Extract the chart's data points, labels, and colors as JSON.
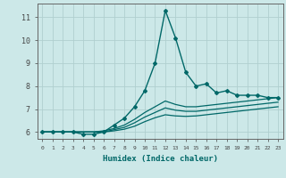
{
  "xlabel": "Humidex (Indice chaleur)",
  "ylabel": "",
  "xlim": [
    -0.5,
    23.5
  ],
  "ylim": [
    5.7,
    11.6
  ],
  "yticks": [
    6,
    7,
    8,
    9,
    10,
    11
  ],
  "xticks": [
    0,
    1,
    2,
    3,
    4,
    5,
    6,
    7,
    8,
    9,
    10,
    11,
    12,
    13,
    14,
    15,
    16,
    17,
    18,
    19,
    20,
    21,
    22,
    23
  ],
  "bg_color": "#cce8e8",
  "grid_color": "#b0cfcf",
  "line_color": "#006868",
  "lines": [
    {
      "x": [
        0,
        1,
        2,
        3,
        4,
        5,
        6,
        7,
        8,
        9,
        10,
        11,
        12,
        13,
        14,
        15,
        16,
        17,
        18,
        19,
        20,
        21,
        22,
        23
      ],
      "y": [
        6.0,
        6.0,
        6.0,
        6.0,
        5.9,
        5.9,
        6.0,
        6.3,
        6.6,
        7.1,
        7.8,
        9.0,
        11.3,
        10.1,
        8.6,
        8.0,
        8.1,
        7.7,
        7.8,
        7.6,
        7.6,
        7.6,
        7.5,
        7.5
      ],
      "marker": "D",
      "markersize": 2.0,
      "linewidth": 1.0
    },
    {
      "x": [
        0,
        1,
        2,
        3,
        4,
        5,
        6,
        7,
        8,
        9,
        10,
        11,
        12,
        13,
        14,
        15,
        16,
        17,
        18,
        19,
        20,
        21,
        22,
        23
      ],
      "y": [
        6.0,
        6.0,
        6.0,
        6.0,
        6.0,
        6.0,
        6.05,
        6.15,
        6.3,
        6.55,
        6.85,
        7.1,
        7.35,
        7.2,
        7.1,
        7.1,
        7.15,
        7.2,
        7.25,
        7.3,
        7.35,
        7.4,
        7.45,
        7.5
      ],
      "marker": null,
      "markersize": 0,
      "linewidth": 0.9
    },
    {
      "x": [
        0,
        1,
        2,
        3,
        4,
        5,
        6,
        7,
        8,
        9,
        10,
        11,
        12,
        13,
        14,
        15,
        16,
        17,
        18,
        19,
        20,
        21,
        22,
        23
      ],
      "y": [
        6.0,
        6.0,
        6.0,
        6.0,
        6.0,
        6.0,
        6.0,
        6.1,
        6.2,
        6.4,
        6.65,
        6.85,
        7.05,
        6.95,
        6.9,
        6.9,
        6.95,
        7.0,
        7.05,
        7.1,
        7.15,
        7.2,
        7.25,
        7.3
      ],
      "marker": null,
      "markersize": 0,
      "linewidth": 0.9
    },
    {
      "x": [
        0,
        1,
        2,
        3,
        4,
        5,
        6,
        7,
        8,
        9,
        10,
        11,
        12,
        13,
        14,
        15,
        16,
        17,
        18,
        19,
        20,
        21,
        22,
        23
      ],
      "y": [
        6.0,
        6.0,
        6.0,
        6.0,
        6.0,
        6.0,
        6.0,
        6.05,
        6.12,
        6.25,
        6.45,
        6.62,
        6.75,
        6.7,
        6.68,
        6.7,
        6.75,
        6.8,
        6.85,
        6.9,
        6.95,
        7.0,
        7.05,
        7.1
      ],
      "marker": null,
      "markersize": 0,
      "linewidth": 0.9
    }
  ]
}
